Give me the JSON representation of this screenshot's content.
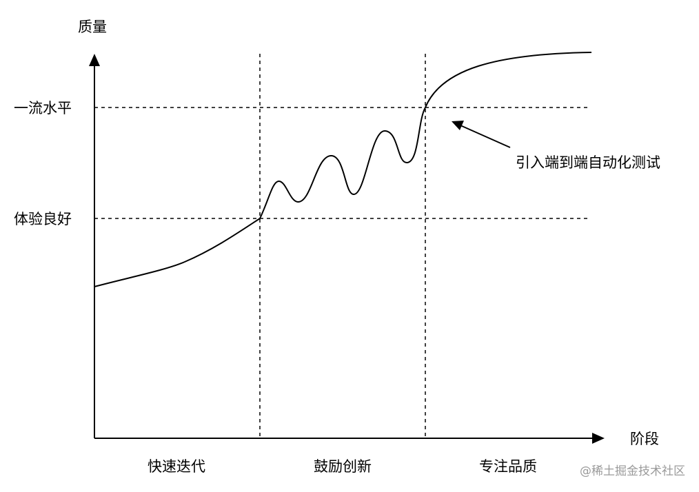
{
  "y_axis_label": "质量",
  "x_axis_label": "阶段",
  "y_levels": [
    {
      "label": "一流水平"
    },
    {
      "label": "体验良好"
    }
  ],
  "stages": [
    {
      "label": "快速迭代"
    },
    {
      "label": "鼓励创新"
    },
    {
      "label": "专注品质"
    }
  ],
  "annotation": "引入端到端自动化测试",
  "watermark": "@稀土掘金技术社区",
  "colors": {
    "line": "#000000",
    "watermark": "#9a9a9a"
  }
}
